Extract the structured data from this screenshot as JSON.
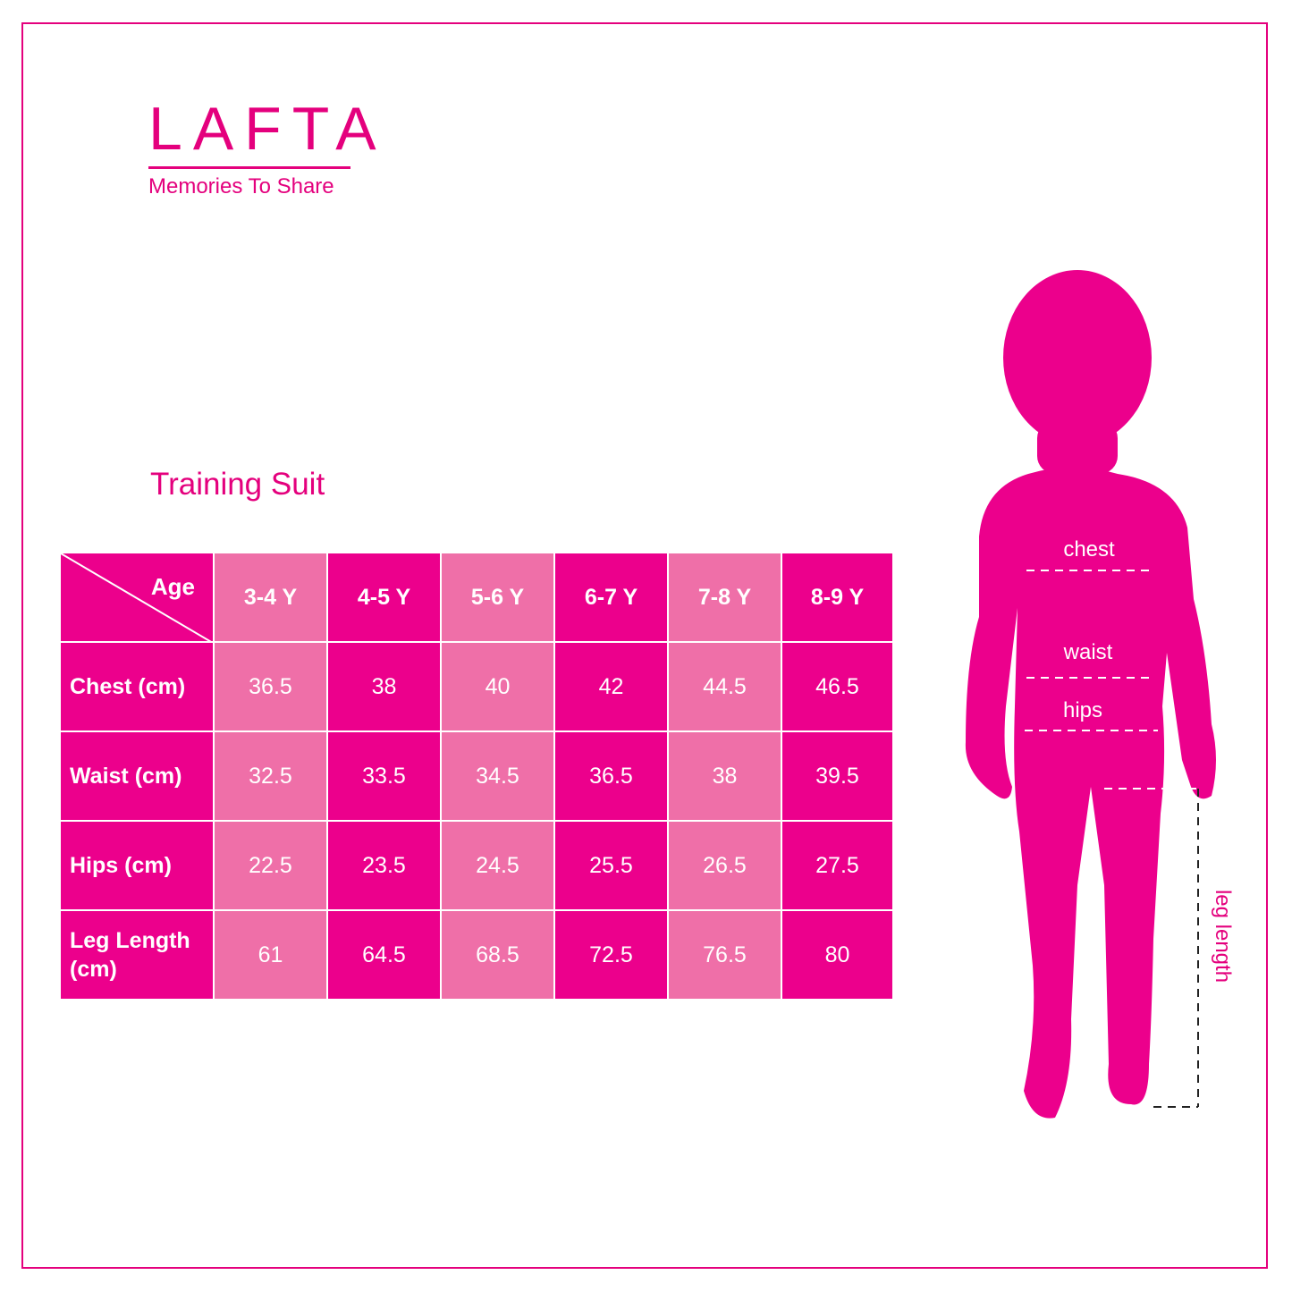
{
  "brand": {
    "logo": "LAFTA",
    "tagline": "Memories To Share"
  },
  "title": "Training Suit",
  "table": {
    "corner_label": "Age",
    "columns": [
      "3-4 Y",
      "4-5 Y",
      "5-6 Y",
      "6-7 Y",
      "7-8 Y",
      "8-9 Y"
    ],
    "rows": [
      {
        "label": "Chest (cm)",
        "values": [
          "36.5",
          "38",
          "40",
          "42",
          "44.5",
          "46.5"
        ]
      },
      {
        "label": "Waist (cm)",
        "values": [
          "32.5",
          "33.5",
          "34.5",
          "36.5",
          "38",
          "39.5"
        ]
      },
      {
        "label": "Hips (cm)",
        "values": [
          "22.5",
          "23.5",
          "24.5",
          "25.5",
          "26.5",
          "27.5"
        ]
      },
      {
        "label": "Leg Length (cm)",
        "values": [
          "61",
          "64.5",
          "68.5",
          "72.5",
          "76.5",
          "80"
        ]
      }
    ]
  },
  "figure": {
    "chest": "chest",
    "waist": "waist",
    "hips": "hips",
    "leg_length": "leg length"
  },
  "colors": {
    "brand": "#e4007d",
    "dark_cell": "#ec008c",
    "light_cell": "#ef6fa8"
  }
}
